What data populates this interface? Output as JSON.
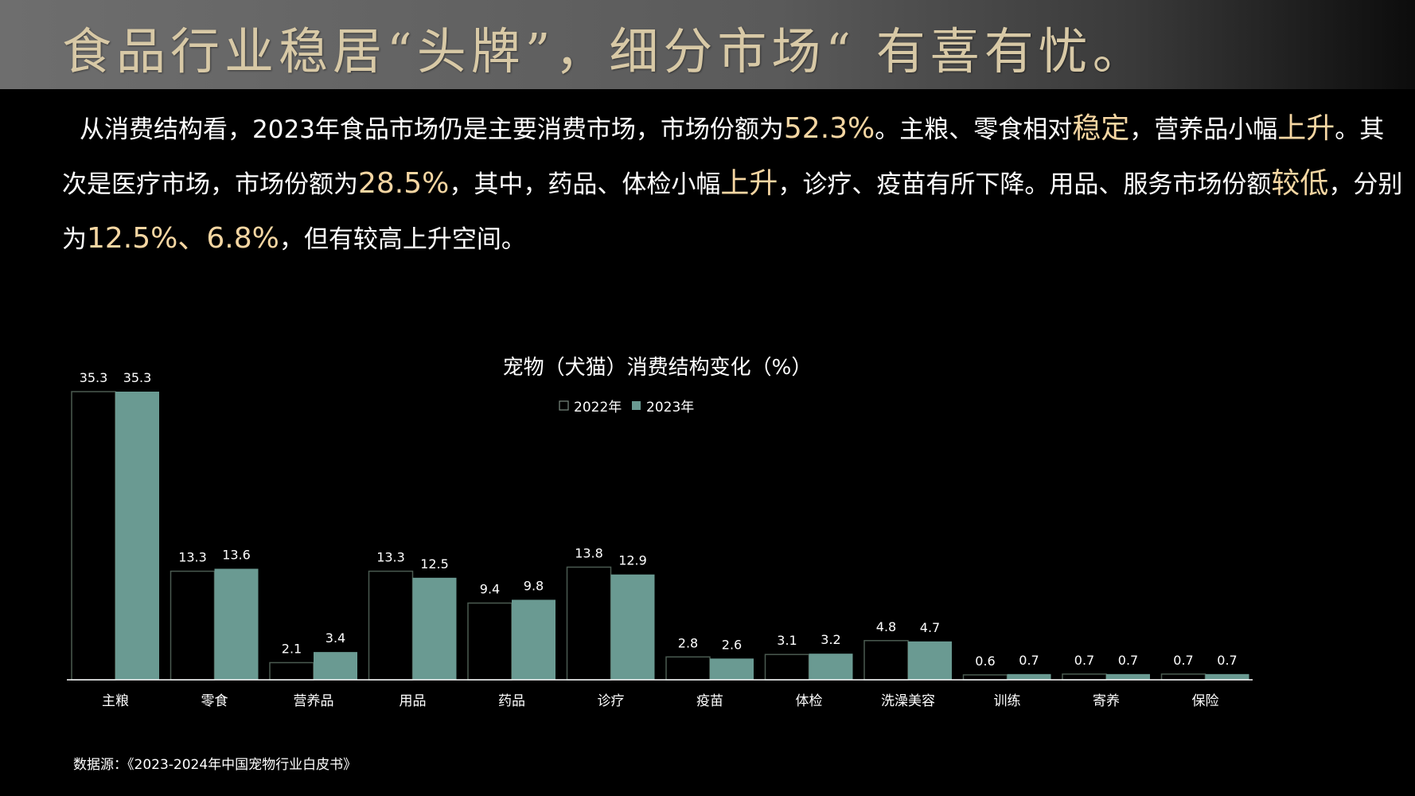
{
  "header": {
    "title": "食品行业稳居“头牌”，细分市场“ 有喜有忧。"
  },
  "summary": {
    "s1": "从消费结构看，2023年食品市场仍是主要消费市场，市场份额为",
    "h1": "52.3%",
    "s2": "。主粮、零食相对",
    "h2": "稳定",
    "s3": "，营养品小幅",
    "h3": "上升",
    "s4": "。其次是医疗市场，市场份额为",
    "h4": "28.5%",
    "s5": "，其中，药品、体检小幅",
    "h5": "上升",
    "s6": "，诊疗、疫苗有所下降。用品、服务市场份额",
    "h6": "较低",
    "s7": "，分别为",
    "h7": "12.5%、6.8%",
    "s8": "，但有较高上升空间。"
  },
  "chart_data": {
    "type": "bar",
    "title": "宠物（犬猫）消费结构变化（%）",
    "categories": [
      "主粮",
      "零食",
      "营养品",
      "用品",
      "药品",
      "诊疗",
      "疫苗",
      "体检",
      "洗澡美容",
      "训练",
      "寄养",
      "保险"
    ],
    "series": [
      {
        "name": "2022年",
        "values": [
          35.3,
          13.3,
          2.1,
          13.3,
          9.4,
          13.8,
          2.8,
          3.1,
          4.8,
          0.6,
          0.7,
          0.7
        ],
        "color": "#000000",
        "outline": "#4a5a50"
      },
      {
        "name": "2023年",
        "values": [
          35.3,
          13.6,
          3.4,
          12.5,
          9.8,
          12.9,
          2.6,
          3.2,
          4.7,
          0.7,
          0.7,
          0.7
        ],
        "color": "#6a9a92"
      }
    ],
    "ylim": [
      0,
      35.3
    ],
    "legend": "top-center",
    "grid": false,
    "data_labels": true
  },
  "footer": {
    "source": "数据源：《2023-2024年中国宠物行业白皮书》"
  }
}
